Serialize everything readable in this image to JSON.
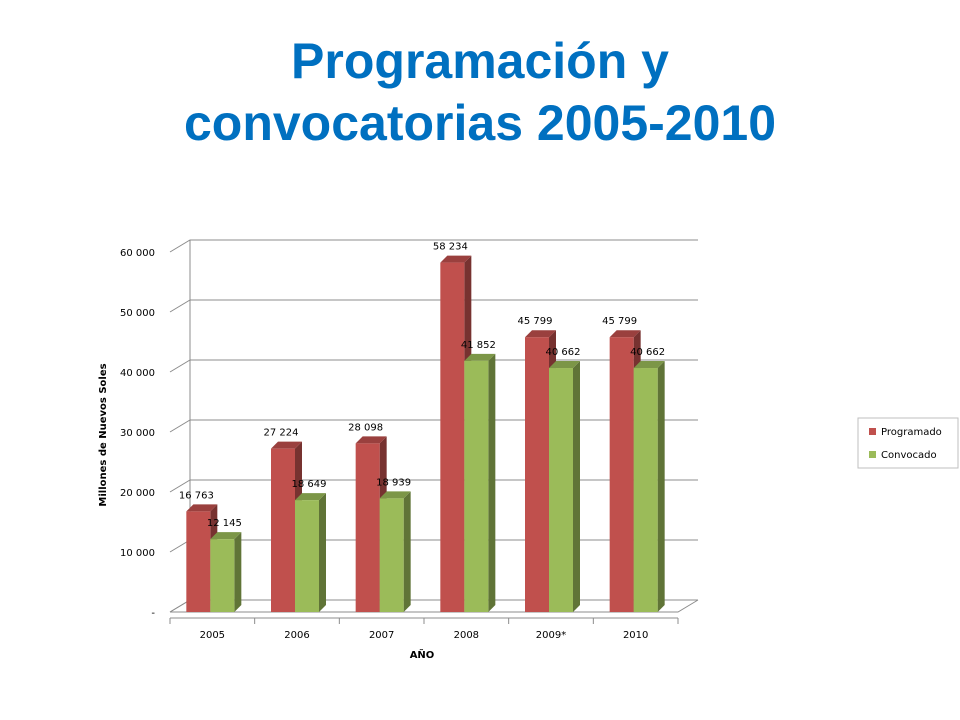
{
  "title": {
    "line1": "Programación y",
    "line2": "convocatorias 2005-2010"
  },
  "colors": {
    "title": "#0070C0",
    "programado": "#C0504D",
    "convocado": "#9BBB59"
  },
  "chart_data": {
    "type": "bar",
    "categories": [
      "2005",
      "2006",
      "2007",
      "2008",
      "2009*",
      "2010"
    ],
    "series": [
      {
        "name": "Programado",
        "values": [
          16763,
          27224,
          28098,
          58234,
          45799,
          45799
        ],
        "labels": [
          "16 763",
          "27 224",
          "28 098",
          "58 234",
          "45 799",
          "45 799"
        ]
      },
      {
        "name": "Convocado",
        "values": [
          12145,
          18649,
          18939,
          41852,
          40662,
          40662
        ],
        "labels": [
          "12 145",
          "18 649",
          "18 939",
          "41 852",
          "40 662",
          "40 662"
        ]
      }
    ],
    "xlabel": "AÑO",
    "ylabel": "Millones de Nuevos Soles",
    "ylim": [
      0,
      60000
    ],
    "yticks": [
      0,
      10000,
      20000,
      30000,
      40000,
      50000,
      60000
    ],
    "ytick_labels": [
      "-",
      "10 000",
      "20 000",
      "30 000",
      "40 000",
      "50 000",
      "60 000"
    ],
    "grid": true,
    "legend_position": "right"
  }
}
